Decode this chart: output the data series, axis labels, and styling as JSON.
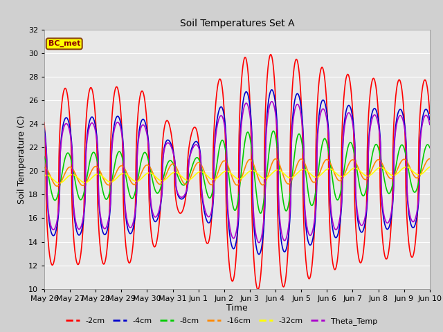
{
  "title": "Soil Temperatures Set A",
  "xlabel": "Time",
  "ylabel": "Soil Temperature (C)",
  "ylim": [
    10,
    32
  ],
  "fig_bg_color": "#d0d0d0",
  "plot_bg_color": "#e8e8e8",
  "annotation_text": "BC_met",
  "annotation_bg": "#ffff00",
  "annotation_border": "#8B4513",
  "series": {
    "-2cm": {
      "color": "#ff0000",
      "lw": 1.2
    },
    "-4cm": {
      "color": "#0000cc",
      "lw": 1.2
    },
    "-8cm": {
      "color": "#00cc00",
      "lw": 1.2
    },
    "-16cm": {
      "color": "#ff8800",
      "lw": 1.2
    },
    "-32cm": {
      "color": "#ffff00",
      "lw": 1.2
    },
    "Theta_Temp": {
      "color": "#aa00cc",
      "lw": 1.2
    }
  },
  "tick_labels": [
    "May 26",
    "May 27",
    "May 28",
    "May 29",
    "May 30",
    "May 31",
    "Jun 1",
    "Jun 2",
    "Jun 3",
    "Jun 4",
    "Jun 5",
    "Jun 6",
    "Jun 7",
    "Jun 8",
    "Jun 9",
    "Jun 10"
  ],
  "n_days": 15,
  "pts_per_day": 144
}
